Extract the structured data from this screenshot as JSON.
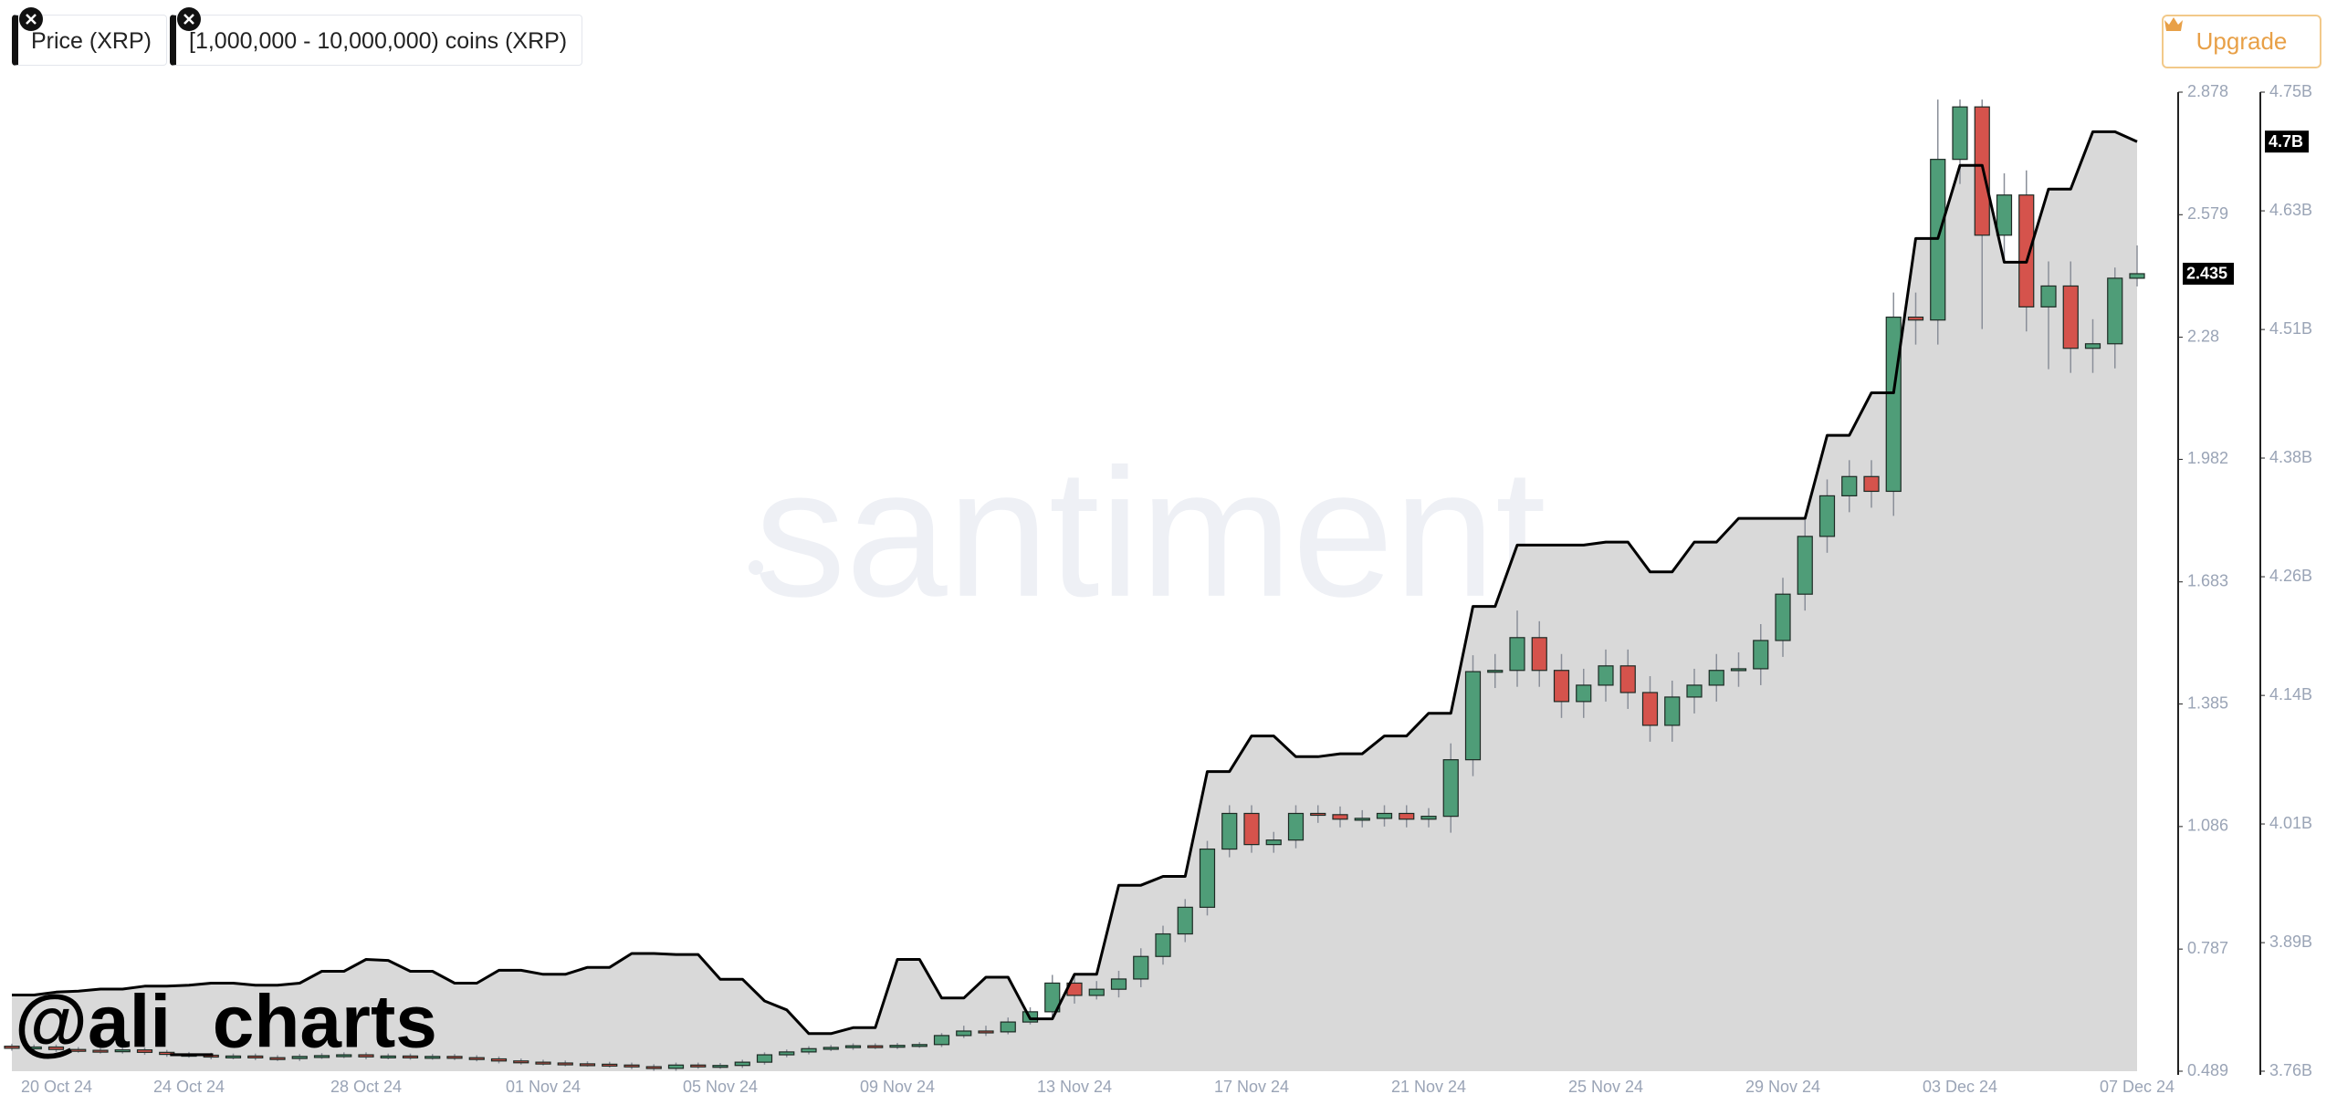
{
  "chart_data": {
    "type": "candlestick",
    "watermark": "santiment",
    "credit": "@ali_charts",
    "upgrade": "Upgrade",
    "categories": [
      "20 Oct 24",
      null,
      null,
      null,
      null,
      null,
      null,
      null,
      "24 Oct 24",
      null,
      null,
      null,
      null,
      null,
      null,
      null,
      "28 Oct 24",
      null,
      null,
      null,
      null,
      null,
      null,
      null,
      "01 Nov 24",
      null,
      null,
      null,
      null,
      null,
      null,
      null,
      "05 Nov 24",
      null,
      null,
      null,
      null,
      null,
      null,
      null,
      "09 Nov 24",
      null,
      null,
      null,
      null,
      null,
      null,
      null,
      "13 Nov 24",
      null,
      null,
      null,
      null,
      null,
      null,
      null,
      "17 Nov 24",
      null,
      null,
      null,
      null,
      null,
      null,
      null,
      "21 Nov 24",
      null,
      null,
      null,
      null,
      null,
      null,
      null,
      "25 Nov 24",
      null,
      null,
      null,
      null,
      null,
      null,
      null,
      "29 Nov 24",
      null,
      null,
      null,
      null,
      null,
      null,
      null,
      "03 Dec 24",
      null,
      null,
      null,
      null,
      null,
      null,
      null,
      "07 Dec 24"
    ],
    "series": [
      {
        "name": "Price (XRP)",
        "up_color": "#4f9d78",
        "down_color": "#d5534c",
        "open": [
          0.55,
          0.545,
          0.548,
          0.542,
          0.54,
          0.538,
          0.541,
          0.535,
          0.53,
          0.528,
          0.524,
          0.526,
          0.522,
          0.52,
          0.525,
          0.527,
          0.529,
          0.524,
          0.526,
          0.523,
          0.525,
          0.522,
          0.519,
          0.514,
          0.511,
          0.509,
          0.507,
          0.506,
          0.504,
          0.5,
          0.496,
          0.504,
          0.501,
          0.503,
          0.511,
          0.529,
          0.536,
          0.544,
          0.547,
          0.551,
          0.549,
          0.552,
          0.554,
          0.576,
          0.587,
          0.585,
          0.609,
          0.634,
          0.704,
          0.674,
          0.689,
          0.714,
          0.769,
          0.824,
          0.889,
          1.031,
          1.118,
          1.042,
          1.053,
          1.118,
          1.115,
          1.104,
          1.106,
          1.118,
          1.104,
          1.111,
          1.249,
          1.464,
          1.467,
          1.547,
          1.467,
          1.391,
          1.431,
          1.478,
          1.413,
          1.333,
          1.402,
          1.431,
          1.467,
          1.471,
          1.54,
          1.653,
          1.794,
          1.893,
          1.94,
          1.904,
          2.329,
          2.322,
          2.714,
          2.842,
          2.529,
          2.627,
          2.354,
          2.405,
          2.253,
          2.264,
          2.424
        ],
        "high": [
          0.556,
          0.554,
          0.554,
          0.548,
          0.546,
          0.547,
          0.547,
          0.541,
          0.536,
          0.534,
          0.532,
          0.532,
          0.528,
          0.531,
          0.533,
          0.535,
          0.535,
          0.532,
          0.532,
          0.531,
          0.531,
          0.528,
          0.525,
          0.52,
          0.517,
          0.515,
          0.513,
          0.512,
          0.51,
          0.506,
          0.51,
          0.51,
          0.509,
          0.517,
          0.535,
          0.542,
          0.55,
          0.553,
          0.557,
          0.557,
          0.558,
          0.56,
          0.582,
          0.6,
          0.6,
          0.62,
          0.645,
          0.724,
          0.724,
          0.709,
          0.734,
          0.789,
          0.844,
          0.909,
          1.051,
          1.138,
          1.138,
          1.073,
          1.138,
          1.138,
          1.135,
          1.126,
          1.138,
          1.138,
          1.131,
          1.289,
          1.504,
          1.507,
          1.613,
          1.587,
          1.507,
          1.471,
          1.518,
          1.518,
          1.453,
          1.442,
          1.471,
          1.507,
          1.511,
          1.58,
          1.693,
          1.834,
          1.933,
          1.98,
          1.98,
          2.389,
          2.389,
          2.86,
          2.86,
          2.86,
          2.68,
          2.687,
          2.465,
          2.465,
          2.324,
          2.45,
          2.504
        ],
        "low": [
          0.539,
          0.539,
          0.536,
          0.534,
          0.532,
          0.532,
          0.529,
          0.524,
          0.522,
          0.518,
          0.518,
          0.516,
          0.514,
          0.514,
          0.519,
          0.521,
          0.518,
          0.518,
          0.517,
          0.517,
          0.516,
          0.513,
          0.508,
          0.505,
          0.503,
          0.501,
          0.5,
          0.498,
          0.494,
          0.49,
          0.49,
          0.495,
          0.495,
          0.497,
          0.505,
          0.523,
          0.53,
          0.538,
          0.541,
          0.543,
          0.543,
          0.546,
          0.548,
          0.57,
          0.575,
          0.579,
          0.603,
          0.614,
          0.654,
          0.664,
          0.669,
          0.694,
          0.749,
          0.804,
          0.869,
          1.011,
          1.022,
          1.022,
          1.033,
          1.095,
          1.084,
          1.084,
          1.086,
          1.084,
          1.084,
          1.071,
          1.209,
          1.424,
          1.427,
          1.427,
          1.351,
          1.351,
          1.391,
          1.373,
          1.293,
          1.293,
          1.362,
          1.391,
          1.427,
          1.431,
          1.5,
          1.613,
          1.754,
          1.853,
          1.864,
          1.844,
          2.262,
          2.262,
          2.654,
          2.3,
          2.469,
          2.294,
          2.202,
          2.193,
          2.193,
          2.204,
          2.404
        ],
        "close": [
          0.545,
          0.548,
          0.542,
          0.54,
          0.538,
          0.541,
          0.535,
          0.53,
          0.528,
          0.524,
          0.526,
          0.522,
          0.52,
          0.525,
          0.527,
          0.529,
          0.524,
          0.526,
          0.523,
          0.525,
          0.522,
          0.519,
          0.514,
          0.511,
          0.509,
          0.507,
          0.506,
          0.504,
          0.5,
          0.496,
          0.504,
          0.501,
          0.503,
          0.511,
          0.529,
          0.536,
          0.544,
          0.547,
          0.551,
          0.549,
          0.552,
          0.554,
          0.576,
          0.587,
          0.585,
          0.609,
          0.634,
          0.704,
          0.674,
          0.689,
          0.714,
          0.769,
          0.824,
          0.889,
          1.031,
          1.118,
          1.042,
          1.053,
          1.118,
          1.115,
          1.104,
          1.106,
          1.118,
          1.104,
          1.111,
          1.249,
          1.464,
          1.467,
          1.547,
          1.467,
          1.391,
          1.431,
          1.478,
          1.413,
          1.333,
          1.402,
          1.431,
          1.467,
          1.471,
          1.54,
          1.653,
          1.794,
          1.893,
          1.94,
          1.904,
          2.329,
          2.322,
          2.714,
          2.842,
          2.529,
          2.627,
          2.354,
          2.405,
          2.253,
          2.264,
          2.424,
          2.435
        ]
      },
      {
        "name": "[1,000,000 - 10,000,000) coins (XRP)",
        "color": "#000000",
        "fill": "#d9d9d9",
        "axis": "y2",
        "values": [
          3.837,
          3.837,
          3.84,
          3.841,
          3.843,
          3.843,
          3.846,
          3.846,
          3.847,
          3.849,
          3.849,
          3.847,
          3.847,
          3.849,
          3.861,
          3.861,
          3.873,
          3.872,
          3.861,
          3.861,
          3.849,
          3.849,
          3.862,
          3.862,
          3.858,
          3.858,
          3.865,
          3.865,
          3.879,
          3.879,
          3.878,
          3.878,
          3.853,
          3.853,
          3.831,
          3.822,
          3.798,
          3.798,
          3.804,
          3.804,
          3.873,
          3.873,
          3.834,
          3.834,
          3.855,
          3.855,
          3.813,
          3.813,
          3.858,
          3.858,
          3.948,
          3.948,
          3.957,
          3.957,
          4.063,
          4.063,
          4.099,
          4.099,
          4.078,
          4.078,
          4.081,
          4.081,
          4.099,
          4.099,
          4.122,
          4.122,
          4.23,
          4.23,
          4.292,
          4.292,
          4.292,
          4.292,
          4.295,
          4.295,
          4.265,
          4.265,
          4.295,
          4.295,
          4.319,
          4.319,
          4.319,
          4.319,
          4.403,
          4.403,
          4.446,
          4.446,
          4.602,
          4.602,
          4.676,
          4.676,
          4.578,
          4.578,
          4.652,
          4.652,
          4.71,
          4.71,
          4.7
        ]
      }
    ],
    "ylim": [
      0.489,
      2.878
    ],
    "yticks": [
      2.878,
      2.579,
      2.28,
      1.982,
      1.683,
      1.385,
      1.086,
      0.787,
      0.489
    ],
    "y2lim": [
      3.76,
      4.75
    ],
    "y2ticks": [
      {
        "value": 4.75,
        "label": "4.75B"
      },
      {
        "value": 4.63,
        "label": "4.63B"
      },
      {
        "value": 4.51,
        "label": "4.51B"
      },
      {
        "value": 4.38,
        "label": "4.38B"
      },
      {
        "value": 4.26,
        "label": "4.26B"
      },
      {
        "value": 4.14,
        "label": "4.14B"
      },
      {
        "value": 4.01,
        "label": "4.01B"
      },
      {
        "value": 3.89,
        "label": "3.89B"
      },
      {
        "value": 3.76,
        "label": "3.76B"
      }
    ],
    "last_labels": [
      {
        "value": 2.435,
        "axis": "y"
      },
      {
        "value": 4.7,
        "label": "4.7B",
        "axis": "y2"
      }
    ]
  }
}
